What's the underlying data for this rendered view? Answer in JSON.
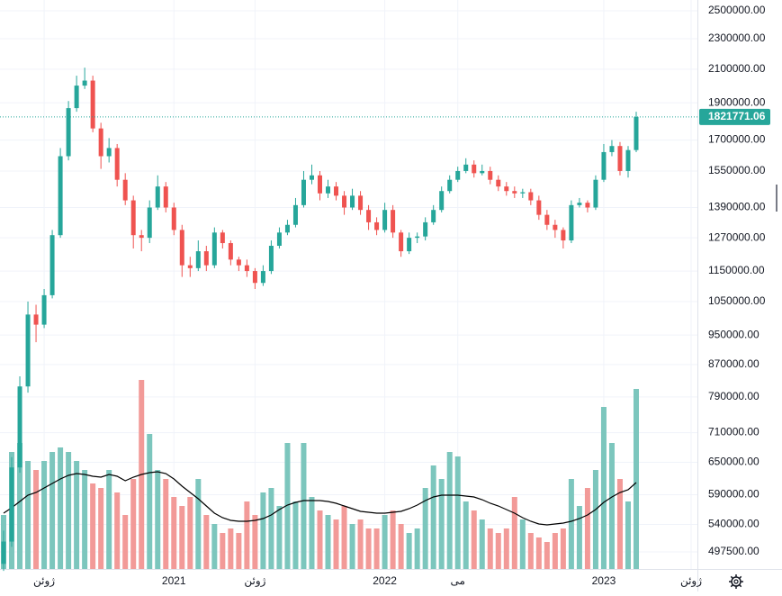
{
  "chart_data": {
    "type": "candlestick",
    "log_scale": true,
    "grid": true,
    "up_color": "#26a69a",
    "down_color": "#ef5350",
    "volume_up_color": "#7cc6bd",
    "volume_down_color": "#f29a98",
    "volume_ma_color": "#000000",
    "ylim": [
      472700,
      2582000
    ],
    "yticks": [
      {
        "value": 2500000,
        "label": "2500000.00"
      },
      {
        "value": 2300000,
        "label": "2300000.00"
      },
      {
        "value": 2100000,
        "label": "2100000.00"
      },
      {
        "value": 1900000,
        "label": "1900000.00"
      },
      {
        "value": 1700000,
        "label": "1700000.00"
      },
      {
        "value": 1550000,
        "label": "1550000.00"
      },
      {
        "value": 1390000,
        "label": "1390000.00"
      },
      {
        "value": 1270000,
        "label": "1270000.00"
      },
      {
        "value": 1150000,
        "label": "1150000.00"
      },
      {
        "value": 1050000,
        "label": "1050000.00"
      },
      {
        "value": 950000,
        "label": "950000.00"
      },
      {
        "value": 870000,
        "label": "870000.00"
      },
      {
        "value": 790000,
        "label": "790000.00"
      },
      {
        "value": 710000,
        "label": "710000.00"
      },
      {
        "value": 650000,
        "label": "650000.00"
      },
      {
        "value": 590000,
        "label": "590000.00"
      },
      {
        "value": 540000,
        "label": "540000.00"
      },
      {
        "value": 497500,
        "label": "497500.00"
      }
    ],
    "categories": [
      null,
      null,
      null,
      null,
      null,
      "ژوئن",
      null,
      null,
      null,
      null,
      null,
      null,
      null,
      null,
      null,
      null,
      null,
      null,
      null,
      null,
      null,
      "2021",
      null,
      null,
      null,
      null,
      null,
      null,
      null,
      null,
      null,
      "ژوئن",
      null,
      null,
      null,
      null,
      null,
      null,
      null,
      null,
      null,
      null,
      null,
      null,
      null,
      null,
      null,
      "2022",
      null,
      null,
      null,
      null,
      null,
      null,
      null,
      null,
      "می",
      null,
      null,
      null,
      null,
      null,
      null,
      null,
      null,
      null,
      null,
      null,
      null,
      null,
      null,
      null,
      null,
      null,
      "2023",
      null,
      null,
      null,
      null
    ],
    "future_tick_label": "ژوئن",
    "open": [
      480000,
      513000,
      640000,
      815000,
      1010000,
      980000,
      1070000,
      1280000,
      1620000,
      1870000,
      2000000,
      2030000,
      1760000,
      1620000,
      1660000,
      1510000,
      1420000,
      1280000,
      1270000,
      1390000,
      1480000,
      1390000,
      1300000,
      1170000,
      1160000,
      1220000,
      1170000,
      1290000,
      1250000,
      1190000,
      1170000,
      1150000,
      1110000,
      1150000,
      1240000,
      1290000,
      1320000,
      1400000,
      1510000,
      1530000,
      1450000,
      1480000,
      1440000,
      1390000,
      1440000,
      1380000,
      1330000,
      1300000,
      1380000,
      1290000,
      1220000,
      1270000,
      1275000,
      1330000,
      1380000,
      1460000,
      1510000,
      1550000,
      1580000,
      1540000,
      1550000,
      1510000,
      1480000,
      1460000,
      1450000,
      1455000,
      1420000,
      1360000,
      1320000,
      1300000,
      1260000,
      1400000,
      1410000,
      1390000,
      1510000,
      1640000,
      1670000,
      1550000,
      1650000
    ],
    "high": [
      530000,
      660000,
      840000,
      1050000,
      1040000,
      1090000,
      1300000,
      1660000,
      1910000,
      2060000,
      2110000,
      2060000,
      1790000,
      1710000,
      1680000,
      1540000,
      1440000,
      1300000,
      1420000,
      1530000,
      1500000,
      1410000,
      1320000,
      1200000,
      1260000,
      1240000,
      1310000,
      1300000,
      1260000,
      1200000,
      1190000,
      1160000,
      1170000,
      1260000,
      1310000,
      1340000,
      1430000,
      1550000,
      1580000,
      1550000,
      1510000,
      1500000,
      1460000,
      1470000,
      1460000,
      1400000,
      1350000,
      1410000,
      1400000,
      1300000,
      1290000,
      1290000,
      1350000,
      1400000,
      1480000,
      1530000,
      1570000,
      1610000,
      1600000,
      1580000,
      1570000,
      1530000,
      1500000,
      1480000,
      1470000,
      1470000,
      1440000,
      1380000,
      1340000,
      1310000,
      1420000,
      1430000,
      1420000,
      1530000,
      1680000,
      1700000,
      1690000,
      1670000,
      1850000
    ],
    "low": [
      470000,
      505000,
      630000,
      800000,
      930000,
      970000,
      1060000,
      1270000,
      1600000,
      1850000,
      1980000,
      1740000,
      1560000,
      1590000,
      1480000,
      1400000,
      1230000,
      1220000,
      1250000,
      1380000,
      1370000,
      1280000,
      1130000,
      1130000,
      1150000,
      1150000,
      1160000,
      1230000,
      1170000,
      1150000,
      1130000,
      1090000,
      1100000,
      1140000,
      1230000,
      1280000,
      1310000,
      1390000,
      1490000,
      1420000,
      1430000,
      1420000,
      1360000,
      1380000,
      1360000,
      1300000,
      1280000,
      1290000,
      1270000,
      1200000,
      1210000,
      1250000,
      1260000,
      1320000,
      1370000,
      1450000,
      1500000,
      1540000,
      1520000,
      1530000,
      1490000,
      1460000,
      1440000,
      1430000,
      1430000,
      1400000,
      1340000,
      1300000,
      1270000,
      1230000,
      1250000,
      1390000,
      1370000,
      1380000,
      1500000,
      1620000,
      1530000,
      1520000,
      1640000
    ],
    "close": [
      513000,
      640000,
      815000,
      1010000,
      980000,
      1070000,
      1280000,
      1620000,
      1870000,
      2000000,
      2030000,
      1760000,
      1620000,
      1660000,
      1510000,
      1420000,
      1280000,
      1270000,
      1390000,
      1480000,
      1390000,
      1300000,
      1170000,
      1160000,
      1220000,
      1170000,
      1290000,
      1250000,
      1190000,
      1170000,
      1150000,
      1110000,
      1150000,
      1240000,
      1290000,
      1320000,
      1400000,
      1510000,
      1530000,
      1450000,
      1480000,
      1440000,
      1390000,
      1440000,
      1380000,
      1330000,
      1300000,
      1380000,
      1290000,
      1220000,
      1270000,
      1275000,
      1330000,
      1380000,
      1460000,
      1510000,
      1550000,
      1580000,
      1540000,
      1550000,
      1510000,
      1480000,
      1460000,
      1450000,
      1455000,
      1420000,
      1360000,
      1320000,
      1300000,
      1260000,
      1400000,
      1410000,
      1390000,
      1510000,
      1640000,
      1670000,
      1550000,
      1650000,
      1821771.06
    ],
    "volume": [
      60,
      130,
      140,
      120,
      110,
      120,
      130,
      135,
      130,
      120,
      110,
      95,
      90,
      110,
      85,
      60,
      100,
      210,
      150,
      110,
      100,
      80,
      70,
      80,
      100,
      60,
      50,
      40,
      45,
      40,
      75,
      60,
      85,
      90,
      70,
      140,
      75,
      140,
      80,
      65,
      60,
      55,
      70,
      50,
      55,
      45,
      45,
      60,
      65,
      50,
      40,
      45,
      90,
      115,
      100,
      130,
      125,
      75,
      65,
      55,
      45,
      40,
      45,
      80,
      55,
      40,
      35,
      30,
      40,
      45,
      100,
      70,
      90,
      110,
      180,
      140,
      100,
      75,
      200
    ],
    "volume_ma": [
      62,
      68,
      75,
      82,
      85,
      90,
      95,
      100,
      104,
      106,
      105,
      103,
      102,
      105,
      103,
      98,
      102,
      105,
      107,
      108,
      106,
      100,
      92,
      85,
      78,
      70,
      62,
      57,
      54,
      53,
      53,
      54,
      56,
      60,
      66,
      71,
      74,
      76,
      76,
      76,
      75,
      73,
      70,
      67,
      64,
      63,
      62,
      62,
      63,
      64,
      67,
      71,
      76,
      80,
      82,
      82,
      82,
      81,
      80,
      77,
      73,
      70,
      66,
      62,
      57,
      53,
      50,
      49,
      50,
      51,
      53,
      56,
      60,
      66,
      74,
      80,
      85,
      88,
      96
    ]
  }
}
